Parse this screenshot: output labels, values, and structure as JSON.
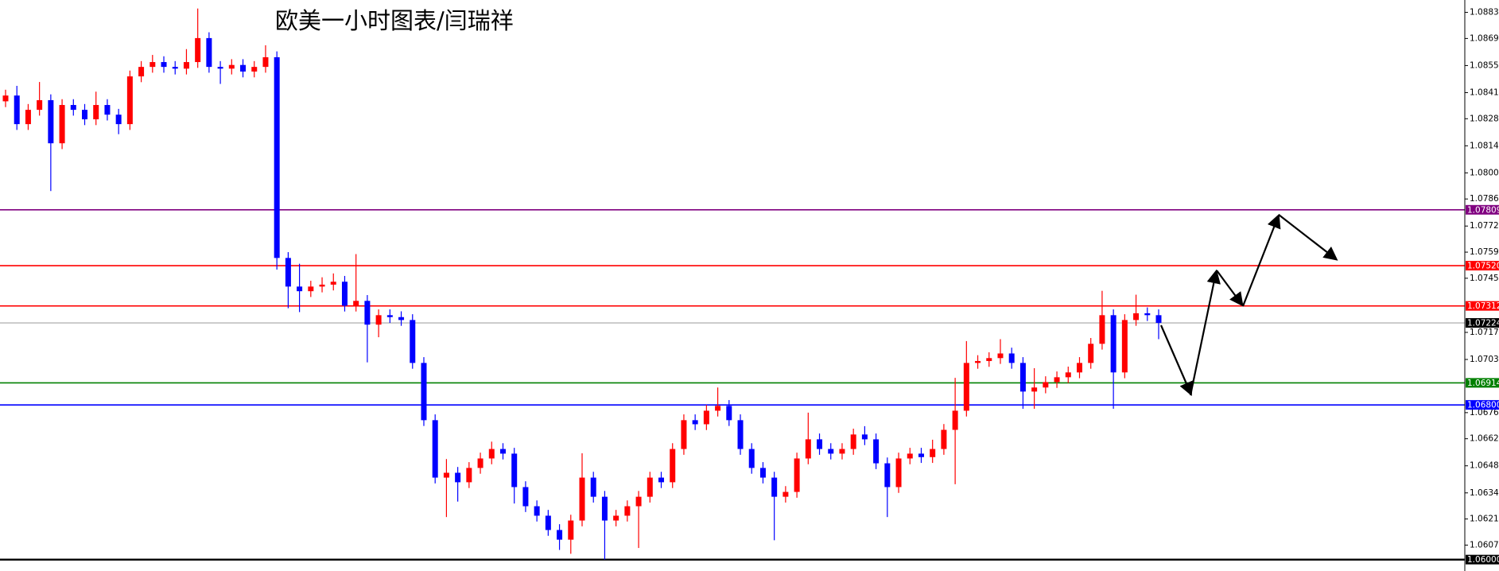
{
  "chart_data": {
    "type": "candlestick",
    "title": "欧美一小时图表/闫瑞祥",
    "up_color": "#ff0000",
    "down_color": "#0000ff",
    "ylim": [
      1.05941,
      1.08894
    ],
    "yticks": [
      {
        "value": 1.0883,
        "label": "1.08830"
      },
      {
        "value": 1.08695,
        "label": "1.08695"
      },
      {
        "value": 1.08555,
        "label": "1.08555"
      },
      {
        "value": 1.08415,
        "label": "1.08415"
      },
      {
        "value": 1.0828,
        "label": "1.08280"
      },
      {
        "value": 1.0814,
        "label": "1.08140"
      },
      {
        "value": 1.08,
        "label": "1.08000"
      },
      {
        "value": 1.07865,
        "label": "1.07865"
      },
      {
        "value": 1.07725,
        "label": "1.07725"
      },
      {
        "value": 1.0759,
        "label": "1.07590"
      },
      {
        "value": 1.07455,
        "label": "1.07455"
      },
      {
        "value": 1.07175,
        "label": "1.07175"
      },
      {
        "value": 1.07035,
        "label": "1.07035"
      },
      {
        "value": 1.0676,
        "label": "1.06760"
      },
      {
        "value": 1.06625,
        "label": "1.06625"
      },
      {
        "value": 1.06485,
        "label": "1.06485"
      },
      {
        "value": 1.06345,
        "label": "1.06345"
      },
      {
        "value": 1.0621,
        "label": "1.06210"
      },
      {
        "value": 1.06075,
        "label": "1.06075"
      }
    ],
    "levels": [
      {
        "value": 1.07809,
        "label": "1.07809",
        "color": "#800080"
      },
      {
        "value": 1.0752,
        "label": "1.07520",
        "color": "#ff0000"
      },
      {
        "value": 1.07312,
        "label": "1.07312",
        "color": "#ff0000"
      },
      {
        "value": 1.07224,
        "label": "1.07224",
        "color": "#c0c0c0"
      },
      {
        "value": 1.06914,
        "label": "1.06914",
        "color": "#008000"
      },
      {
        "value": 1.068,
        "label": "1.06800",
        "color": "#0000ff"
      },
      {
        "value": 1.06,
        "label": "1.06000",
        "color": "#000000"
      }
    ],
    "open": [
      1.0837,
      1.084,
      1.08252,
      1.08326,
      1.08376,
      1.08153,
      1.08351,
      1.08326,
      1.08277,
      1.08351,
      1.08301,
      1.08252,
      1.08499,
      1.08548,
      1.08573,
      1.08548,
      1.08539,
      1.08573,
      1.08697,
      1.08548,
      1.08539,
      1.08558,
      1.08524,
      1.08548,
      1.08598,
      1.0756,
      1.07412,
      1.07388,
      1.07412,
      1.07422,
      1.07437,
      1.07313,
      1.07338,
      1.07215,
      1.07264,
      1.07254,
      1.07239,
      1.07017,
      1.06721,
      1.06424,
      1.06449,
      1.064,
      1.06474,
      1.06523,
      1.06572,
      1.06548,
      1.06375,
      1.06276,
      1.06227,
      1.06153,
      1.06103,
      1.06202,
      1.06424,
      1.06325,
      1.06202,
      1.06227,
      1.06276,
      1.06325,
      1.06424,
      1.064,
      1.06572,
      1.06721,
      1.067,
      1.0677,
      1.06795,
      1.06721,
      1.06572,
      1.06474,
      1.06424,
      1.06325,
      1.0635,
      1.06523,
      1.06622,
      1.06572,
      1.06548,
      1.06572,
      1.06647,
      1.06622,
      1.06498,
      1.06375,
      1.06523,
      1.06548,
      1.0653,
      1.06572,
      1.06671,
      1.0677,
      1.07017,
      1.07027,
      1.07042,
      1.07066,
      1.07017,
      1.06869,
      1.0689,
      1.06918,
      1.06943,
      1.06968,
      1.07017,
      1.07116,
      1.07264,
      1.06968,
      1.07239,
      1.07274,
      1.07264
    ],
    "high": [
      1.0843,
      1.0845,
      1.08356,
      1.0847,
      1.08406,
      1.08381,
      1.08381,
      1.08356,
      1.0842,
      1.08381,
      1.08331,
      1.08529,
      1.08578,
      1.0861,
      1.08603,
      1.08578,
      1.0864,
      1.0885,
      1.08727,
      1.08578,
      1.08588,
      1.08588,
      1.08578,
      1.0866,
      1.08628,
      1.0759,
      1.0753,
      1.07442,
      1.0746,
      1.0748,
      1.07467,
      1.0758,
      1.07368,
      1.07294,
      1.07294,
      1.07284,
      1.07269,
      1.07047,
      1.06751,
      1.0652,
      1.06479,
      1.06504,
      1.06553,
      1.0661,
      1.06602,
      1.06578,
      1.06405,
      1.06306,
      1.06257,
      1.06183,
      1.06232,
      1.0655,
      1.06454,
      1.06355,
      1.06257,
      1.06306,
      1.06355,
      1.06454,
      1.06454,
      1.06602,
      1.06751,
      1.06751,
      1.068,
      1.0689,
      1.06825,
      1.06751,
      1.06602,
      1.06504,
      1.06454,
      1.0638,
      1.06553,
      1.0676,
      1.06652,
      1.06602,
      1.06602,
      1.06677,
      1.0669,
      1.06652,
      1.06528,
      1.06553,
      1.06578,
      1.06578,
      1.0662,
      1.06701,
      1.0694,
      1.0713,
      1.07057,
      1.07072,
      1.0714,
      1.07096,
      1.07047,
      1.0699,
      1.06948,
      1.06973,
      1.06998,
      1.07047,
      1.07146,
      1.0739,
      1.07294,
      1.07269,
      1.0737,
      1.07304,
      1.07294
    ],
    "low": [
      1.0834,
      1.08222,
      1.08222,
      1.08296,
      1.07906,
      1.08123,
      1.08296,
      1.08247,
      1.08247,
      1.08271,
      1.082,
      1.08222,
      1.08469,
      1.08518,
      1.08518,
      1.08509,
      1.08509,
      1.08543,
      1.08518,
      1.0846,
      1.08509,
      1.08494,
      1.08494,
      1.08518,
      1.075,
      1.073,
      1.0728,
      1.07358,
      1.07382,
      1.07392,
      1.07283,
      1.07283,
      1.0702,
      1.0715,
      1.07224,
      1.07209,
      1.06987,
      1.06691,
      1.06394,
      1.0622,
      1.063,
      1.0637,
      1.06444,
      1.06493,
      1.06518,
      1.0629,
      1.06246,
      1.06197,
      1.06123,
      1.0605,
      1.0603,
      1.06172,
      1.06295,
      1.06,
      1.06172,
      1.06197,
      1.0606,
      1.06295,
      1.0637,
      1.0637,
      1.06542,
      1.0667,
      1.0667,
      1.0674,
      1.06691,
      1.06542,
      1.06444,
      1.06394,
      1.061,
      1.06295,
      1.0632,
      1.06493,
      1.06542,
      1.06518,
      1.06518,
      1.06542,
      1.06592,
      1.06468,
      1.0622,
      1.06345,
      1.06493,
      1.065,
      1.065,
      1.06542,
      1.0639,
      1.0674,
      1.06987,
      1.06997,
      1.07012,
      1.06987,
      1.0678,
      1.0678,
      1.0686,
      1.06888,
      1.06913,
      1.06938,
      1.06987,
      1.07086,
      1.0678,
      1.06938,
      1.07209,
      1.07234,
      1.0714
    ],
    "close": [
      1.084,
      1.08252,
      1.08326,
      1.08376,
      1.08153,
      1.08351,
      1.08326,
      1.08277,
      1.08351,
      1.08301,
      1.08252,
      1.08499,
      1.08548,
      1.08573,
      1.08548,
      1.08539,
      1.08573,
      1.08697,
      1.08548,
      1.08539,
      1.08558,
      1.08524,
      1.08548,
      1.08598,
      1.0756,
      1.07412,
      1.07388,
      1.07412,
      1.07422,
      1.07437,
      1.07313,
      1.07338,
      1.07215,
      1.07264,
      1.07254,
      1.07239,
      1.07017,
      1.06721,
      1.06424,
      1.06449,
      1.064,
      1.06474,
      1.06523,
      1.06572,
      1.06548,
      1.06375,
      1.06276,
      1.06227,
      1.06153,
      1.06103,
      1.06202,
      1.06424,
      1.06325,
      1.06202,
      1.06227,
      1.06276,
      1.06325,
      1.06424,
      1.064,
      1.06572,
      1.06721,
      1.067,
      1.0677,
      1.06795,
      1.06721,
      1.06572,
      1.06474,
      1.06424,
      1.06325,
      1.0635,
      1.06523,
      1.06622,
      1.06572,
      1.06548,
      1.06572,
      1.06647,
      1.06622,
      1.06498,
      1.06375,
      1.06523,
      1.06548,
      1.0653,
      1.06572,
      1.06671,
      1.0677,
      1.07017,
      1.07027,
      1.07042,
      1.07066,
      1.07017,
      1.06869,
      1.0689,
      1.06918,
      1.06943,
      1.06968,
      1.07017,
      1.07116,
      1.07264,
      1.06968,
      1.07239,
      1.07274,
      1.07264,
      1.07224
    ]
  }
}
